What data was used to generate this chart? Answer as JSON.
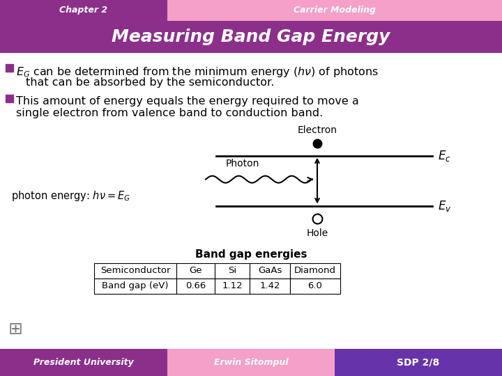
{
  "chapter_text": "Chapter 2",
  "chapter_bg": "#8B2F8B",
  "carrier_text": "Carrier Modeling",
  "carrier_bg": "#F4A0C8",
  "main_title": "Measuring Band Gap Energy",
  "main_bg": "#8B2F8B",
  "body_bg": "#ffffff",
  "bullet_color": "#8B2F8B",
  "footer_left_text": "President University",
  "footer_left_bg": "#8B2F8B",
  "footer_mid_text": "Erwin Sitompul",
  "footer_mid_bg": "#F4A0C8",
  "footer_right_text": "SDP 2/8",
  "footer_right_bg": "#6633AA",
  "table_title": "Band gap energies",
  "table_headers": [
    "Semiconductor",
    "Ge",
    "Si",
    "GaAs",
    "Diamond"
  ],
  "table_row": [
    "Band gap (eV)",
    "0.66",
    "1.12",
    "1.42",
    "6.0"
  ],
  "header_split": 0.333
}
